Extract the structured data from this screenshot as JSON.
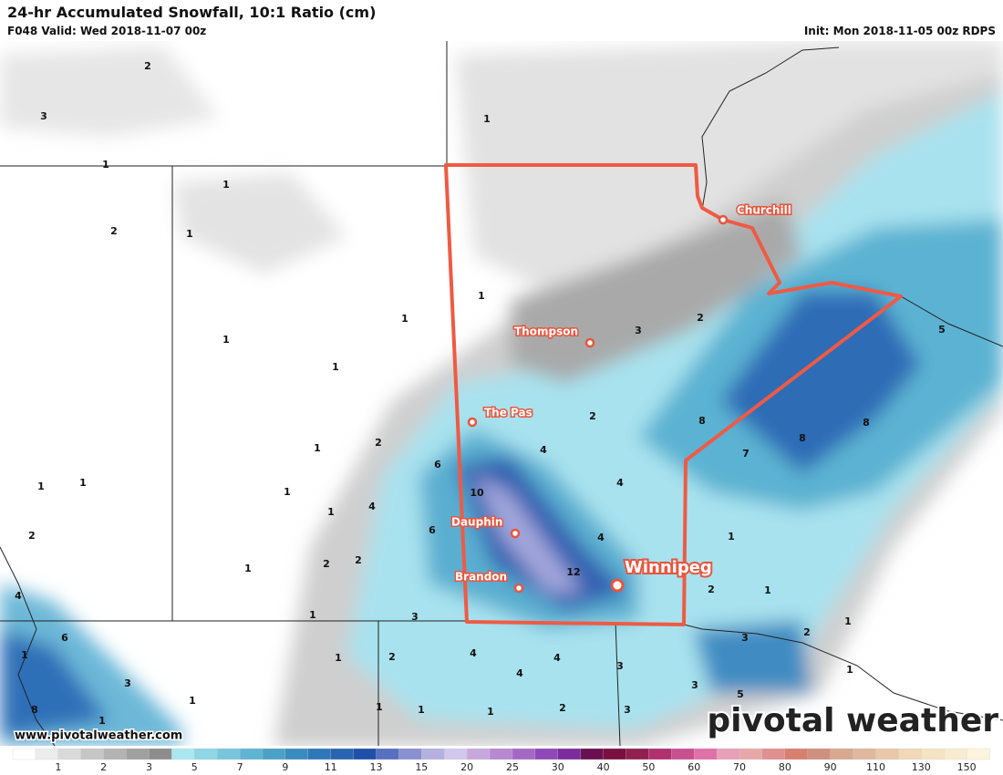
{
  "header": {
    "title": "24-hr Accumulated Snowfall, 10:1 Ratio (cm)",
    "valid": "F048 Valid: Wed 2018-11-07 00z",
    "init": "Init: Mon 2018-11-05 00z RDPS"
  },
  "map_labels": [
    "2",
    "3",
    "1",
    "1",
    "1",
    "2",
    "1",
    "1",
    "1",
    "1",
    "1",
    "3",
    "2",
    "5",
    "2",
    "8",
    "8",
    "8",
    "7",
    "2",
    "4",
    "1",
    "6",
    "10",
    "4",
    "1",
    "1",
    "1",
    "1",
    "4",
    "6",
    "4",
    "2",
    "2",
    "2",
    "1",
    "12",
    "1",
    "2",
    "1",
    "4",
    "1",
    "3",
    "1",
    "2",
    "3",
    "6",
    "1",
    "1",
    "2",
    "4",
    "4",
    "3",
    "1",
    "4",
    "3",
    "3",
    "5",
    "1",
    "8",
    "1",
    "1",
    "1",
    "2",
    "3",
    "1"
  ],
  "cities": [
    {
      "name": "Churchill"
    },
    {
      "name": "Thompson"
    },
    {
      "name": "The Pas"
    },
    {
      "name": "Dauphin"
    },
    {
      "name": "Brandon"
    },
    {
      "name": "Winnipeg"
    }
  ],
  "watermark": "www.pivotalweather.com",
  "logo": "pivotal weather",
  "colorbar": {
    "labels": [
      1,
      2,
      3,
      5,
      7,
      9,
      11,
      13,
      15,
      20,
      25,
      30,
      40,
      50,
      60,
      70,
      80,
      90,
      110,
      130,
      150
    ],
    "colors": [
      "#ffffff",
      "#ececec",
      "#d9d9d9",
      "#c6c6c6",
      "#b3b3b3",
      "#a0a0a0",
      "#8d8d8d",
      "#a8e6f0",
      "#8fd6e6",
      "#78c6dc",
      "#5fb4d2",
      "#4aa2c6",
      "#3a8cc0",
      "#2f78b8",
      "#2864b0",
      "#1f50a8",
      "#5870c0",
      "#8a90d0",
      "#b4b0e0",
      "#d2c8ec",
      "#c8a8dc",
      "#b888d0",
      "#a468c4",
      "#9048b8",
      "#7c2c9c",
      "#6a1050",
      "#7a1040",
      "#902050",
      "#b03070",
      "#c85090",
      "#e070a8",
      "#e8a0b8",
      "#e8a8a8",
      "#e09090",
      "#d88070",
      "#d09080",
      "#d8a890",
      "#e0b8a0",
      "#e8c8a8",
      "#f0d8b8",
      "#f4e4c4",
      "#f8ecd0",
      "#fcf4dc"
    ]
  }
}
